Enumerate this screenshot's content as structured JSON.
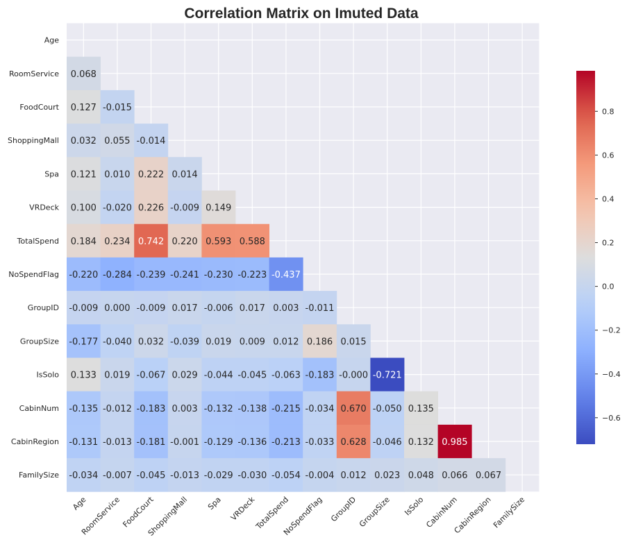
{
  "chart_data": {
    "type": "heatmap",
    "title": "Correlation Matrix on Imuted Data",
    "variables": [
      "Age",
      "RoomService",
      "FoodCourt",
      "ShoppingMall",
      "Spa",
      "VRDeck",
      "TotalSpend",
      "NoSpendFlag",
      "GroupID",
      "GroupSize",
      "IsSolo",
      "CabinNum",
      "CabinRegion",
      "FamilySize"
    ],
    "mask": "upper triangle including diagonal",
    "lower_triangle": [
      [
        "0.068"
      ],
      [
        "0.127",
        "-0.015"
      ],
      [
        "0.032",
        "0.055",
        "-0.014"
      ],
      [
        "0.121",
        "0.010",
        "0.222",
        "0.014"
      ],
      [
        "0.100",
        "-0.020",
        "0.226",
        "-0.009",
        "0.149"
      ],
      [
        "0.184",
        "0.234",
        "0.742",
        "0.220",
        "0.593",
        "0.588"
      ],
      [
        "-0.220",
        "-0.284",
        "-0.239",
        "-0.241",
        "-0.230",
        "-0.223",
        "-0.437"
      ],
      [
        "-0.009",
        "0.000",
        "-0.009",
        "0.017",
        "-0.006",
        "0.017",
        "0.003",
        "-0.011"
      ],
      [
        "-0.177",
        "-0.040",
        "0.032",
        "-0.039",
        "0.019",
        "0.009",
        "0.012",
        "0.186",
        "0.015"
      ],
      [
        "0.133",
        "0.019",
        "-0.067",
        "0.029",
        "-0.044",
        "-0.045",
        "-0.063",
        "-0.183",
        "-0.000",
        "-0.721"
      ],
      [
        "-0.135",
        "-0.012",
        "-0.183",
        "0.003",
        "-0.132",
        "-0.138",
        "-0.215",
        "-0.034",
        "0.670",
        "-0.050",
        "0.135"
      ],
      [
        "-0.131",
        "-0.013",
        "-0.181",
        "-0.001",
        "-0.129",
        "-0.136",
        "-0.213",
        "-0.033",
        "0.628",
        "-0.046",
        "0.132",
        "0.985"
      ],
      [
        "-0.034",
        "-0.007",
        "-0.045",
        "-0.013",
        "-0.029",
        "-0.030",
        "-0.054",
        "-0.004",
        "0.012",
        "0.023",
        "0.048",
        "0.066",
        "0.067"
      ]
    ],
    "colormap": "coolwarm",
    "colorbar": {
      "range": [
        -0.721,
        0.985
      ],
      "ticks": [
        -0.6,
        -0.4,
        -0.2,
        0.0,
        0.2,
        0.4,
        0.6,
        0.8
      ],
      "tick_labels": [
        "−0.6",
        "−0.4",
        "−0.2",
        "0.0",
        "0.2",
        "0.4",
        "0.6",
        "0.8"
      ]
    },
    "background_color": "#eaeaf2",
    "grid": true
  }
}
